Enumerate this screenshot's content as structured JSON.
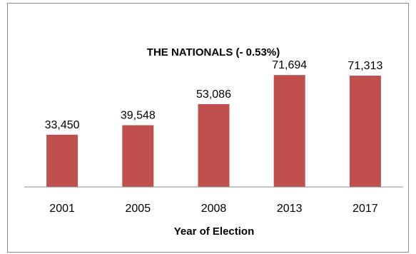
{
  "chart_data": {
    "type": "bar",
    "title": "THE NATIONALS (- 0.53%)",
    "xlabel": "Year of Election",
    "ylabel": "",
    "categories": [
      "2001",
      "2005",
      "2008",
      "2013",
      "2017"
    ],
    "values": [
      33450,
      39548,
      53086,
      71694,
      71313
    ],
    "data_labels": [
      "33,450",
      "39,548",
      "53,086",
      "71,694",
      "71,313"
    ],
    "ylim": [
      0,
      80000
    ],
    "bar_color": "#c0504d",
    "grid": false,
    "legend": "none"
  }
}
